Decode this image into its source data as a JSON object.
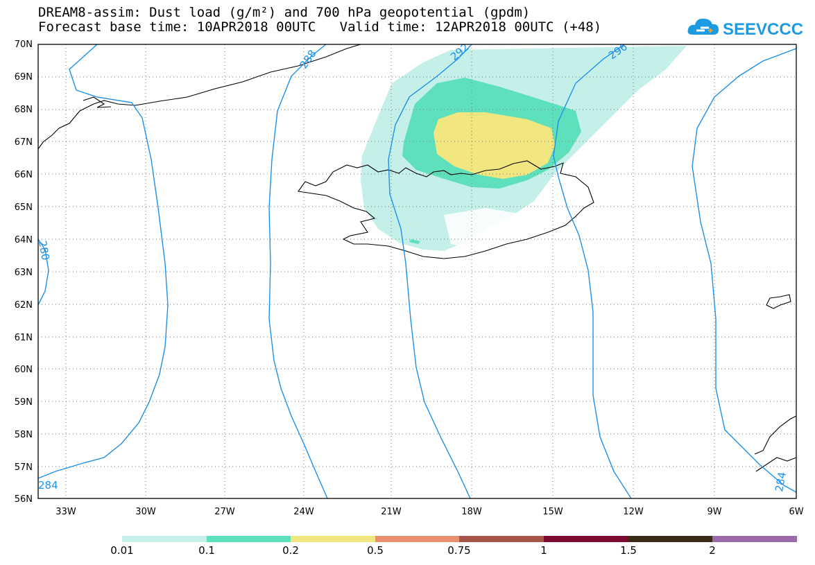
{
  "header": {
    "title_line1": "DREAM8-assim: Dust load (g/m²) and 700 hPa geopotential (gpdm)",
    "title_line2": "Forecast base time: 10APR2018 00UTC   Valid time: 12APR2018 00UTC (+48)"
  },
  "logo": {
    "text": "SEEVCCC",
    "icon": "cloud-icon",
    "color": "#1e9be0"
  },
  "map": {
    "lat_ticks": [
      "70N",
      "69N",
      "68N",
      "67N",
      "66N",
      "65N",
      "64N",
      "63N",
      "62N",
      "61N",
      "60N",
      "59N",
      "58N",
      "57N",
      "56N"
    ],
    "lon_ticks": [
      "33W",
      "30W",
      "27W",
      "24W",
      "21W",
      "18W",
      "15W",
      "12W",
      "9W",
      "6W"
    ],
    "contour_labels": [
      "288",
      "292",
      "296",
      "280",
      "284",
      "284"
    ],
    "contour_color": "#1e90e8",
    "coast_color": "#000000"
  },
  "colorbar": {
    "labels": [
      "0.01",
      "0.1",
      "0.2",
      "0.5",
      "0.75",
      "1",
      "1.5",
      "2"
    ],
    "colors": [
      "#c5f0ea",
      "#5fe0bd",
      "#f2e680",
      "#e89070",
      "#a85448",
      "#7a0a2e",
      "#3a2a18",
      "#9a6aa8"
    ]
  }
}
